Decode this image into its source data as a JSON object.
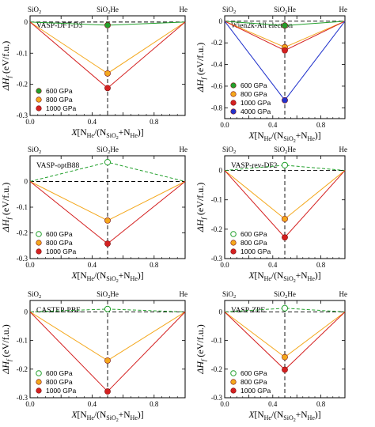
{
  "chart_data": [
    {
      "type": "line",
      "method_label": "VASP-DFT-D3",
      "top_labels": [
        "SiO₂",
        "SiO₂He",
        "He"
      ],
      "x_ticks": [
        "0.0",
        "0.2",
        "0.4",
        "0.6",
        "0.8",
        "1.0"
      ],
      "y_ticks": [
        "0",
        "-0.1",
        "-0.2",
        "-0.3"
      ],
      "xlim": [
        0,
        1
      ],
      "ylim": [
        -0.3,
        0.02
      ],
      "x": [
        0,
        0.5,
        1
      ],
      "series": [
        {
          "name": "600 GPa",
          "values": [
            0,
            -0.01,
            0
          ],
          "color": "#22a02c",
          "stable": true
        },
        {
          "name": "800 GPa",
          "values": [
            0,
            -0.165,
            0
          ],
          "color": "#f4a81d",
          "stable": true
        },
        {
          "name": "1000 GPa",
          "values": [
            0,
            -0.212,
            0
          ],
          "color": "#d42020",
          "stable": true
        }
      ],
      "legend_position": "bottom-left"
    },
    {
      "type": "line",
      "method_label": "Wien2k-All electron",
      "top_labels": [
        "SiO₂",
        "SiO₂He",
        "He"
      ],
      "x_ticks": [
        "0.0",
        "0.2",
        "0.4",
        "0.6",
        "0.8",
        "1.0"
      ],
      "y_ticks": [
        "0",
        "-0.2",
        "-0.4",
        "-0.6",
        "-0.8"
      ],
      "xlim": [
        0,
        1
      ],
      "ylim": [
        -0.9,
        0.05
      ],
      "x": [
        0,
        0.5,
        1
      ],
      "series": [
        {
          "name": "600 GPa",
          "values": [
            0,
            -0.04,
            0
          ],
          "color": "#22a02c",
          "stable": true
        },
        {
          "name": "800 GPa",
          "values": [
            0,
            -0.24,
            0
          ],
          "color": "#f4a81d",
          "stable": true
        },
        {
          "name": "1000 GPa",
          "values": [
            0,
            -0.27,
            0
          ],
          "color": "#d42020",
          "stable": true
        },
        {
          "name": "4000 GPa",
          "values": [
            0,
            -0.73,
            0
          ],
          "color": "#2233cc",
          "stable": true
        }
      ],
      "legend_position": "bottom-left"
    },
    {
      "type": "line",
      "method_label": "VASP-optB88",
      "top_labels": [
        "SiO₂",
        "SiO₂He",
        "He"
      ],
      "x_ticks": [
        "0.0",
        "0.2",
        "0.4",
        "0.6",
        "0.8",
        "1.0"
      ],
      "y_ticks": [
        "0",
        "-0.1",
        "-0.2",
        "-0.3"
      ],
      "xlim": [
        0,
        1
      ],
      "ylim": [
        -0.3,
        0.1
      ],
      "x": [
        0,
        0.5,
        1
      ],
      "series": [
        {
          "name": "600 GPa",
          "values": [
            0,
            0.075,
            0
          ],
          "color": "#22a02c",
          "stable": false
        },
        {
          "name": "800 GPa",
          "values": [
            0,
            -0.152,
            0
          ],
          "color": "#f4a81d",
          "stable": true
        },
        {
          "name": "1000 GPa",
          "values": [
            0,
            -0.242,
            0
          ],
          "color": "#d42020",
          "stable": true
        }
      ],
      "legend_position": "bottom-left"
    },
    {
      "type": "line",
      "method_label": "VASP-rev-DF2",
      "top_labels": [
        "SiO₂",
        "SiO₂He",
        "He"
      ],
      "x_ticks": [
        "0.0",
        "0.2",
        "0.4",
        "0.6",
        "0.8",
        "1.0"
      ],
      "y_ticks": [
        "0",
        "-0.1",
        "-0.2",
        "-0.3"
      ],
      "xlim": [
        0,
        1
      ],
      "ylim": [
        -0.3,
        0.05
      ],
      "x": [
        0,
        0.5,
        1
      ],
      "series": [
        {
          "name": "600 GPa",
          "values": [
            0,
            0.018,
            0
          ],
          "color": "#22a02c",
          "stable": false
        },
        {
          "name": "800 GPa",
          "values": [
            0,
            -0.165,
            0
          ],
          "color": "#f4a81d",
          "stable": true
        },
        {
          "name": "1000 GPa",
          "values": [
            0,
            -0.228,
            0
          ],
          "color": "#d42020",
          "stable": true
        }
      ],
      "legend_position": "bottom-left"
    },
    {
      "type": "line",
      "method_label": "CASTEP-PBE",
      "top_labels": [
        "SiO₂",
        "SiO₂He",
        "He"
      ],
      "x_ticks": [
        "0.0",
        "0.2",
        "0.4",
        "0.6",
        "0.8",
        "1.0"
      ],
      "y_ticks": [
        "0",
        "-0.1",
        "-0.2",
        "-0.3"
      ],
      "xlim": [
        0,
        1
      ],
      "ylim": [
        -0.3,
        0.04
      ],
      "x": [
        0,
        0.5,
        1
      ],
      "series": [
        {
          "name": "600 GPa",
          "values": [
            0,
            0.01,
            0
          ],
          "color": "#22a02c",
          "stable": false
        },
        {
          "name": "800 GPa",
          "values": [
            0,
            -0.17,
            0
          ],
          "color": "#f4a81d",
          "stable": true
        },
        {
          "name": "1000 GPa",
          "values": [
            0,
            -0.278,
            0
          ],
          "color": "#d42020",
          "stable": true
        }
      ],
      "legend_position": "bottom-left"
    },
    {
      "type": "line",
      "method_label": "VASP-ZPE",
      "top_labels": [
        "SiO₂",
        "SiO₂He",
        "He"
      ],
      "x_ticks": [
        "0.0",
        "0.2",
        "0.4",
        "0.6",
        "0.8",
        "1.0"
      ],
      "y_ticks": [
        "0",
        "-0.1",
        "-0.2",
        "-0.3"
      ],
      "xlim": [
        0,
        1
      ],
      "ylim": [
        -0.3,
        0.04
      ],
      "x": [
        0,
        0.5,
        1
      ],
      "series": [
        {
          "name": "600 GPa",
          "values": [
            0,
            0.013,
            0
          ],
          "color": "#22a02c",
          "stable": false
        },
        {
          "name": "800 GPa",
          "values": [
            0,
            -0.158,
            0
          ],
          "color": "#f4a81d",
          "stable": true
        },
        {
          "name": "1000 GPa",
          "values": [
            0,
            -0.202,
            0
          ],
          "color": "#d42020",
          "stable": true
        }
      ],
      "legend_position": "bottom-left"
    }
  ],
  "axis_text": {
    "ylabel_main": "ΔH",
    "ylabel_sub": "f",
    "ylabel_unit": " (eV/f.u.)",
    "xlabel_parts": [
      "X",
      "[N",
      "He",
      "/(N",
      "SiO",
      "2",
      "+N",
      "He",
      ")]"
    ]
  }
}
